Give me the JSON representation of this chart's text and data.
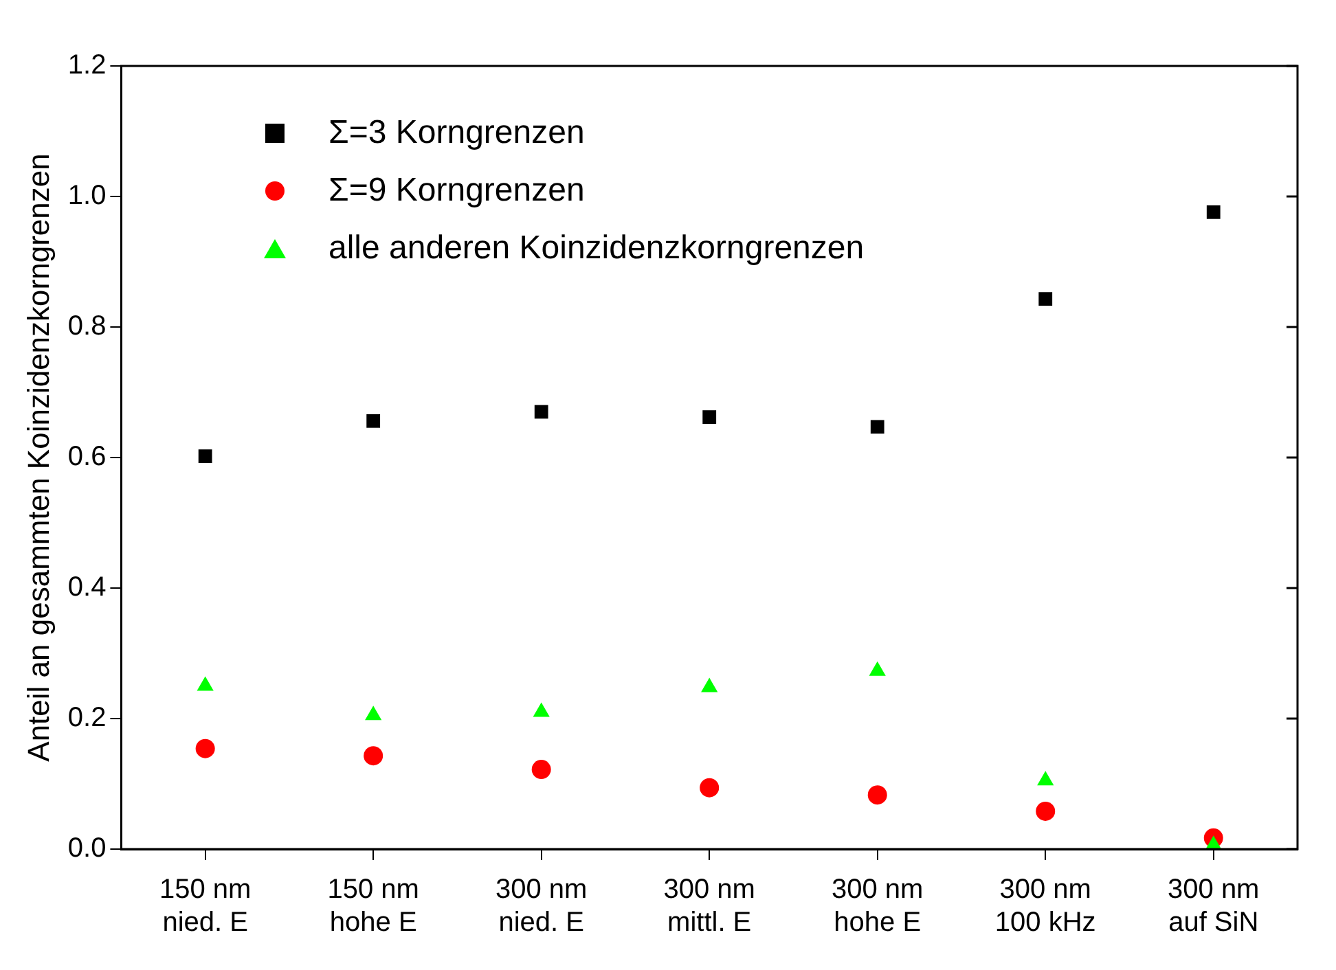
{
  "chart_data": {
    "type": "scatter",
    "ylabel": "Anteil an gesammten Koinzidenzkorngrenzen",
    "categories": [
      "150 nm\nnied. E",
      "150 nm\nhohe E",
      "300 nm\nnied. E",
      "300 nm\nmittl. E",
      "300 nm\nhohe E",
      "300 nm\n100 kHz",
      "300 nm\nauf SiN"
    ],
    "series": [
      {
        "name": "Σ=3 Korngrenzen",
        "color": "#000000",
        "marker": "square",
        "values": [
          0.602,
          0.656,
          0.67,
          0.662,
          0.647,
          0.843,
          0.976
        ]
      },
      {
        "name": "Σ=9 Korngrenzen",
        "color": "#ff0000",
        "marker": "circle",
        "values": [
          0.154,
          0.143,
          0.122,
          0.094,
          0.083,
          0.058,
          0.017
        ]
      },
      {
        "name": "alle anderen Koinzidenzkorngrenzen",
        "color": "#00ff00",
        "marker": "triangle",
        "values": [
          0.25,
          0.205,
          0.21,
          0.248,
          0.273,
          0.105,
          0.006
        ]
      }
    ],
    "ylim": [
      0,
      1.2
    ],
    "yticks": [
      {
        "value": 0,
        "label": "0.0"
      },
      {
        "value": 0.2,
        "label": "0.2"
      },
      {
        "value": 0.4,
        "label": "0.4"
      },
      {
        "value": 0.6,
        "label": "0.6"
      },
      {
        "value": 0.8,
        "label": "0.8"
      },
      {
        "value": 1,
        "label": "1.0"
      },
      {
        "value": 1.2,
        "label": "1.2"
      }
    ],
    "grid": false,
    "legend": "top left"
  }
}
